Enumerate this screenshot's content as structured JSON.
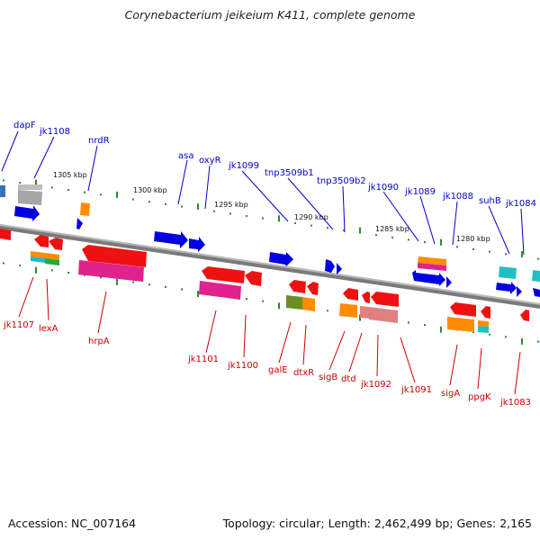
{
  "title": "Corynebacterium jeikeium K411, complete genome",
  "footer": {
    "accession": "Accession: NC_007164",
    "topology": "Topology: circular; Length: 2,462,499 bp; Genes: 2,165"
  },
  "colors": {
    "top_labels": "#0000cc",
    "bottom_labels": "#cc0000",
    "backbone": "#808080",
    "tick_dots": "#2e8b2e"
  },
  "scale_labels": [
    "1305 kbp",
    "1300 kbp",
    "1295 kbp",
    "1290 kbp",
    "1285 kbp",
    "1280 kbp"
  ],
  "top_gene_labels": [
    "dapF",
    "jk1108",
    "nrdR",
    "asa",
    "oxyR",
    "jk1099",
    "tnp3509b1",
    "tnp3509b2",
    "jk1090",
    "jk1089",
    "jk1088",
    "suhB",
    "jk1084"
  ],
  "bottom_gene_labels": [
    "jk1107",
    "lexA",
    "hrpA",
    "jk1101",
    "jk1100",
    "galE",
    "dtxR",
    "sigB",
    "dtd",
    "jk1092",
    "jk1091",
    "sigA",
    "ppgK",
    "jk1083"
  ]
}
